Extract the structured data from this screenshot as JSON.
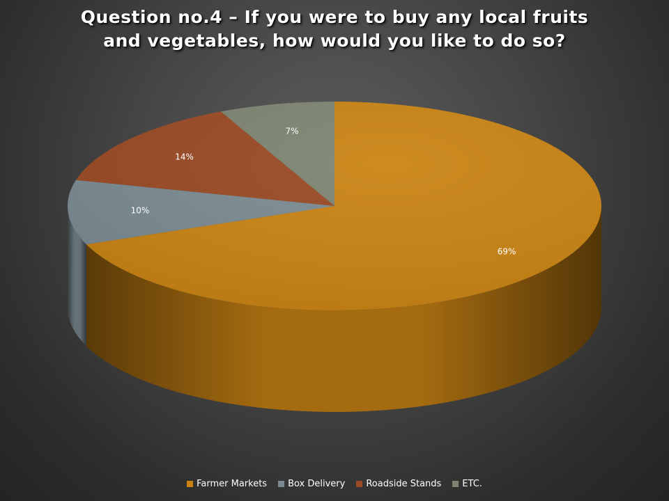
{
  "title_lines": [
    "Question no.4 – If you were to buy any local fruits",
    "and vegetables, how would you like to do so?"
  ],
  "chart_data": {
    "type": "pie",
    "style": "3d",
    "categories": [
      "Farmer Markets",
      "Box Delivery",
      "Roadside Stands",
      "ETC."
    ],
    "values": [
      69,
      10,
      14,
      7
    ],
    "data_labels": [
      "69%",
      "10%",
      "14%",
      "7%"
    ],
    "colors": [
      "#c98313",
      "#7b8a92",
      "#9a4a24",
      "#7d8470"
    ],
    "legend_position": "bottom"
  }
}
